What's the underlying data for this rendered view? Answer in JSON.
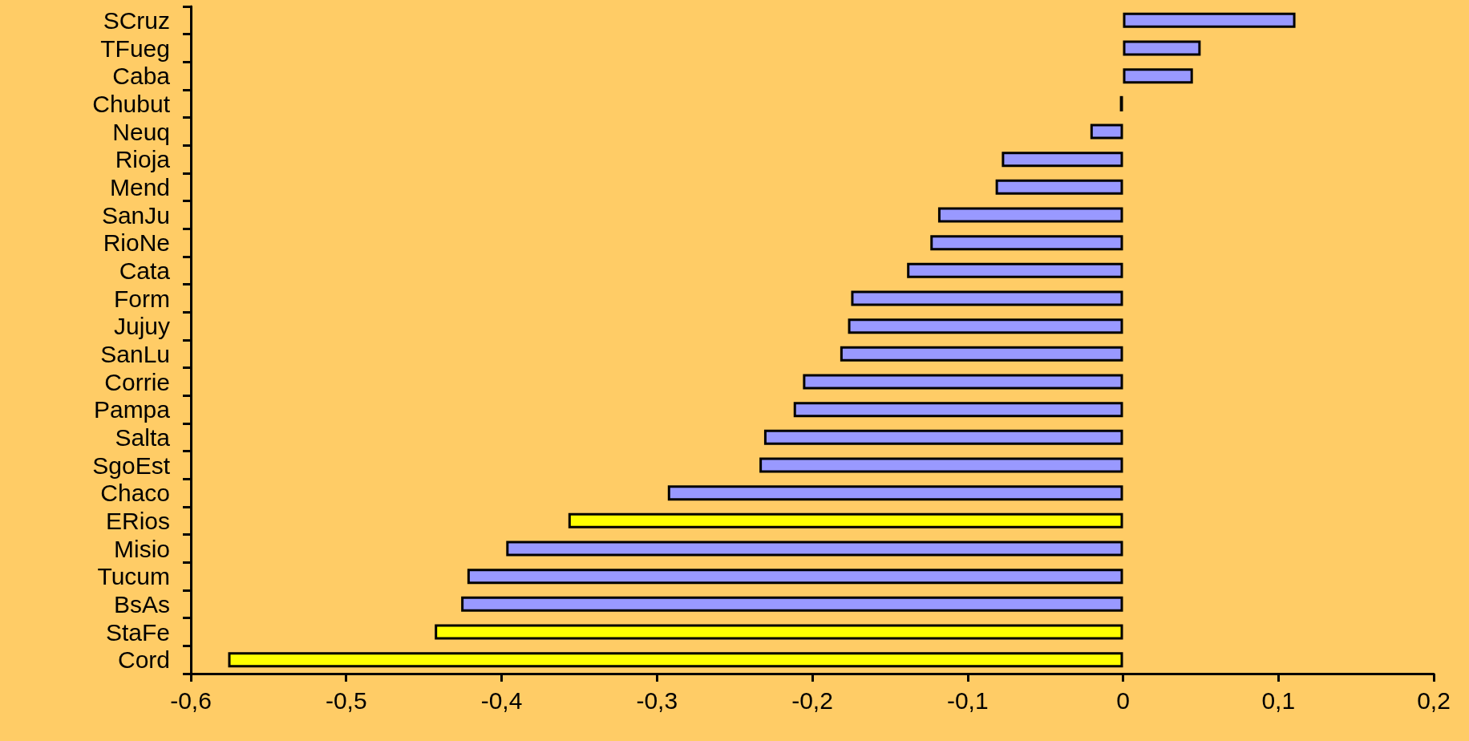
{
  "chart_data": {
    "type": "bar",
    "orientation": "horizontal",
    "categories": [
      "SCruz",
      "TFueg",
      "Caba",
      "Chubut",
      "Neuq",
      "Rioja",
      "Mend",
      "SanJu",
      "RioNe",
      "Cata",
      "Form",
      "Jujuy",
      "SanLu",
      "Corrie",
      "Pampa",
      "Salta",
      "SgoEst",
      "Chaco",
      "ERios",
      "Misio",
      "Tucum",
      "BsAs",
      "StaFe",
      "Cord"
    ],
    "values": [
      0.111,
      0.05,
      0.045,
      -0.002,
      -0.021,
      -0.078,
      -0.082,
      -0.119,
      -0.124,
      -0.139,
      -0.175,
      -0.177,
      -0.182,
      -0.206,
      -0.212,
      -0.231,
      -0.234,
      -0.293,
      -0.357,
      -0.397,
      -0.422,
      -0.426,
      -0.443,
      -0.576
    ],
    "colors": [
      "#9999ff",
      "#9999ff",
      "#9999ff",
      "#9999ff",
      "#9999ff",
      "#9999ff",
      "#9999ff",
      "#9999ff",
      "#9999ff",
      "#9999ff",
      "#9999ff",
      "#9999ff",
      "#9999ff",
      "#9999ff",
      "#9999ff",
      "#9999ff",
      "#9999ff",
      "#9999ff",
      "#ffff00",
      "#9999ff",
      "#9999ff",
      "#9999ff",
      "#ffff00",
      "#ffff00"
    ],
    "xlim": [
      -0.6,
      0.2
    ],
    "xticks": [
      {
        "value": -0.6,
        "label": "-0,6"
      },
      {
        "value": -0.5,
        "label": "-0,5"
      },
      {
        "value": -0.4,
        "label": "-0,4"
      },
      {
        "value": -0.3,
        "label": "-0,3"
      },
      {
        "value": -0.2,
        "label": "-0,2"
      },
      {
        "value": -0.1,
        "label": "-0,1"
      },
      {
        "value": 0,
        "label": "0"
      },
      {
        "value": 0.1,
        "label": "0,1"
      },
      {
        "value": 0.2,
        "label": "0,2"
      }
    ],
    "grid": false
  }
}
